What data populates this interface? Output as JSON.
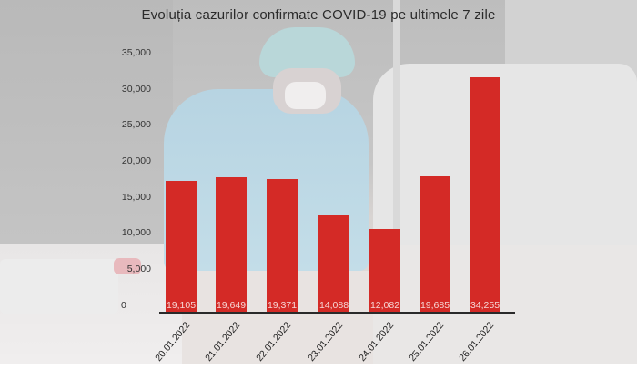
{
  "chart_data": {
    "type": "bar",
    "title": "Evoluția cazurilor confirmate COVID-19 pe ultimele 7 zile",
    "xlabel": "",
    "ylabel": "",
    "categories": [
      "20.01.2022",
      "21.01.2022",
      "22.01.2022",
      "23.01.2022",
      "24.01.2022",
      "25.01.2022",
      "26.01.2022"
    ],
    "values": [
      19105,
      19649,
      19371,
      14088,
      12082,
      19685,
      34255
    ],
    "value_labels": [
      "19,105",
      "19,649",
      "19,371",
      "14,088",
      "12,082",
      "19,685",
      "34,255"
    ],
    "ylim": [
      0,
      35000
    ],
    "yticks": [
      "0",
      "5,000",
      "10,000",
      "15,000",
      "20,000",
      "25,000",
      "30,000",
      "35,000"
    ],
    "grid": false,
    "legend": null,
    "bar_color": "#d42a26"
  }
}
